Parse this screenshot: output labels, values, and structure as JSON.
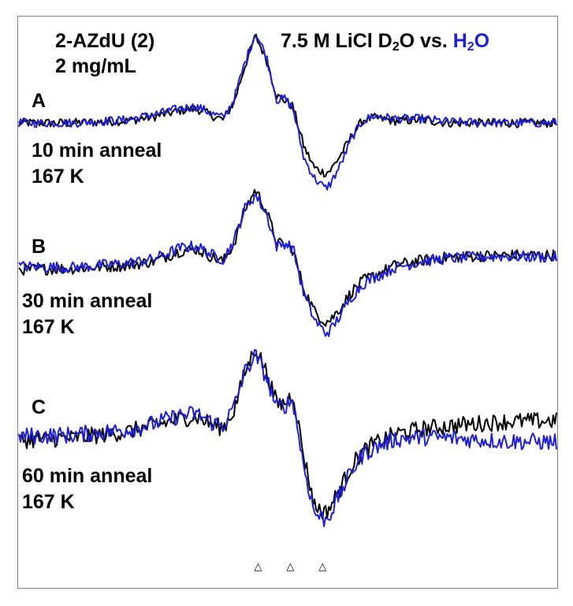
{
  "chart_data": {
    "type": "line",
    "title": {
      "compound": "2-AZdU (2)",
      "concentration": "2 mg/mL",
      "solvent_prefix": "7.5 M LiCl D",
      "solvent_sub": "2",
      "solvent_suffix": "O vs. ",
      "h2o_prefix": "H",
      "h2o_sub": "2",
      "h2o_suffix": "O"
    },
    "xlabel": "",
    "ylabel": "",
    "xlim": [
      0,
      100
    ],
    "grid": false,
    "legend": "none",
    "x_markers": [
      "△",
      "△",
      "△"
    ],
    "x_marker_positions": [
      44.5,
      50.5,
      56.5
    ],
    "series_colors": {
      "D2O": "#000000",
      "H2O": "#1f1fd6"
    },
    "panels": [
      {
        "label": "A",
        "time": "10 min anneal",
        "temperature": "167 K",
        "x": [
          0,
          10,
          20,
          25,
          30,
          33,
          36,
          38,
          40,
          42,
          44,
          46,
          48,
          49.5,
          51,
          53,
          55,
          57,
          58,
          60,
          62,
          64,
          66,
          70,
          75,
          80,
          90,
          100
        ],
        "D2O": [
          0,
          0,
          0.2,
          0.6,
          1.2,
          1.4,
          0.7,
          0.3,
          2.0,
          5.5,
          8.5,
          6.3,
          2.6,
          2.2,
          1.6,
          -2.3,
          -4.4,
          -4.9,
          -4.6,
          -3.0,
          -1.2,
          0.3,
          0.5,
          0.2,
          0.3,
          0,
          0,
          0
        ],
        "H2O": [
          0,
          0,
          0.3,
          0.8,
          1.4,
          1.6,
          0.9,
          0.5,
          2.3,
          5.8,
          8.8,
          6.6,
          2.2,
          2.4,
          1.4,
          -3.4,
          -5.4,
          -6.4,
          -5.9,
          -3.9,
          -1.4,
          0.2,
          0.7,
          0.4,
          0.4,
          0.1,
          0,
          0
        ]
      },
      {
        "label": "B",
        "time": "30 min anneal",
        "temperature": "167 K",
        "x": [
          0,
          10,
          20,
          25,
          30,
          33,
          36,
          38,
          40,
          42,
          44,
          46,
          48,
          49.5,
          51,
          53,
          55,
          57,
          58,
          60,
          62,
          64,
          66,
          70,
          75,
          80,
          90,
          100
        ],
        "D2O": [
          0,
          0.1,
          0.4,
          0.8,
          1.8,
          2.0,
          1.2,
          0.8,
          2.5,
          5.8,
          7.8,
          5.8,
          2.6,
          2.4,
          1.9,
          -1.9,
          -4.1,
          -5.1,
          -4.9,
          -3.6,
          -2.1,
          -1.1,
          -0.6,
          0.4,
          0.9,
          1.2,
          1.4,
          1.4
        ],
        "H2O": [
          0.3,
          0.2,
          0.6,
          1.0,
          2.1,
          2.3,
          1.4,
          1.0,
          2.8,
          5.9,
          7.3,
          5.5,
          2.2,
          2.6,
          2.1,
          -2.4,
          -4.9,
          -6.2,
          -5.9,
          -4.3,
          -2.6,
          -1.4,
          -0.8,
          0.2,
          0.8,
          1.1,
          1.3,
          1.2
        ]
      },
      {
        "label": "C",
        "time": "60 min anneal",
        "temperature": "167 K",
        "x": [
          0,
          10,
          20,
          25,
          30,
          33,
          36,
          38,
          40,
          42,
          44,
          46,
          48,
          49.5,
          51,
          53,
          55,
          57,
          58,
          60,
          62,
          64,
          66,
          70,
          75,
          80,
          90,
          100
        ],
        "D2O": [
          -0.5,
          -0.3,
          0.3,
          0.9,
          1.6,
          1.8,
          1.0,
          0.7,
          2.4,
          6.0,
          8.6,
          6.2,
          3.0,
          3.1,
          4.1,
          -2.1,
          -6.9,
          -7.6,
          -6.9,
          -5.0,
          -2.9,
          -1.6,
          -0.9,
          0.1,
          0.6,
          0.9,
          1.3,
          1.4
        ],
        "H2O": [
          -0.1,
          0.0,
          0.5,
          1.1,
          1.9,
          2.1,
          1.2,
          0.9,
          2.7,
          6.1,
          7.8,
          5.7,
          2.6,
          2.9,
          3.4,
          -3.1,
          -7.6,
          -8.3,
          -7.6,
          -5.5,
          -3.4,
          -1.9,
          -1.3,
          -0.4,
          -0.2,
          -0.3,
          -0.6,
          -0.7
        ]
      }
    ]
  }
}
